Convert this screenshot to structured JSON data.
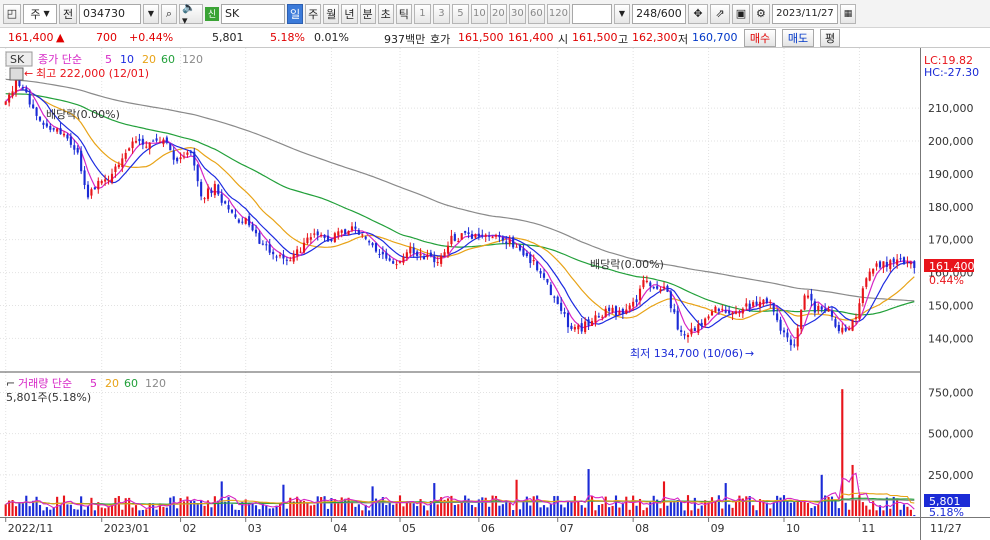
{
  "toolbar": {
    "type_label": "주",
    "period_label": "전",
    "code": "034730",
    "sec_badge": "신",
    "name": "SK",
    "tabs": [
      "일",
      "주",
      "월",
      "년",
      "분",
      "초",
      "틱"
    ],
    "active_tab": "일",
    "intervals": [
      "1",
      "3",
      "5",
      "10",
      "20",
      "30",
      "60",
      "120"
    ],
    "count": "248/600",
    "date": "2023/11/27"
  },
  "quote": {
    "price": "161,400",
    "change": "700",
    "change_pct": "+0.44%",
    "volume": "5,801",
    "vol_ratio": "5.18%",
    "turnover_pct": "0.01%",
    "amount": "937백만",
    "bid_label": "호가",
    "ask": "161,500",
    "bid": "161,400",
    "open_label": "시",
    "open": "161,500",
    "high_label": "고",
    "high": "162,300",
    "low_label": "저",
    "low": "160,700",
    "buy_btn": "매수",
    "sell_btn": "매도",
    "eval_btn": "평"
  },
  "price_legend": {
    "name": "SK",
    "label": "종가 단순",
    "periods": [
      "5",
      "10",
      "20",
      "60",
      "120"
    ]
  },
  "volume_legend": {
    "label": "거래량 단순",
    "periods": [
      "5",
      "20",
      "60",
      "120"
    ],
    "current": "5,801주(5.18%)"
  },
  "price_annotations": {
    "high": "최고 222,000 (12/01)",
    "low": "최저 134,700 (10/06)",
    "dividend1": "배당락(0.00%)",
    "dividend2": "배당락(0.00%)",
    "lc": "LC:19.82",
    "hc": "HC:-27.30",
    "last_price": "161,400",
    "last_pct": "0.44%",
    "last_vol": "5,801",
    "last_vol_pct": "5.18%"
  },
  "colors": {
    "up": "#e8141b",
    "down": "#1b2bd6",
    "ma5": "#d626c6",
    "ma10": "#1d2be0",
    "ma20": "#e8a317",
    "ma60": "#22a03a",
    "ma120": "#8a8a8a"
  },
  "chart_data": [
    {
      "type": "candlestick",
      "title": "SK (034730) 일봉",
      "x_labels": [
        "2022/11",
        "2023/01",
        "02",
        "03",
        "04",
        "05",
        "06",
        "07",
        "08",
        "09",
        "10",
        "11"
      ],
      "x_label_index": [
        0,
        28,
        51,
        70,
        95,
        115,
        138,
        161,
        183,
        205,
        227,
        249
      ],
      "last_date_label": "11/27",
      "y_ticks": [
        140000,
        150000,
        160000,
        170000,
        180000,
        190000,
        200000,
        210000
      ],
      "ylim": [
        131000,
        224000
      ],
      "close_anchors": [
        [
          0,
          212000
        ],
        [
          3,
          218000
        ],
        [
          6,
          214000
        ],
        [
          10,
          205000
        ],
        [
          14,
          204000
        ],
        [
          18,
          202000
        ],
        [
          21,
          196000
        ],
        [
          24,
          183000
        ],
        [
          27,
          187000
        ],
        [
          31,
          190000
        ],
        [
          35,
          196000
        ],
        [
          38,
          201000
        ],
        [
          42,
          199000
        ],
        [
          46,
          200000
        ],
        [
          50,
          194000
        ],
        [
          54,
          197000
        ],
        [
          57,
          183000
        ],
        [
          61,
          186000
        ],
        [
          64,
          180000
        ],
        [
          67,
          176000
        ],
        [
          70,
          177000
        ],
        [
          74,
          170000
        ],
        [
          78,
          165000
        ],
        [
          82,
          163000
        ],
        [
          86,
          167000
        ],
        [
          90,
          173000
        ],
        [
          94,
          170000
        ],
        [
          98,
          172000
        ],
        [
          102,
          174000
        ],
        [
          106,
          169000
        ],
        [
          110,
          165000
        ],
        [
          114,
          163000
        ],
        [
          118,
          167000
        ],
        [
          122,
          165000
        ],
        [
          126,
          163000
        ],
        [
          130,
          170000
        ],
        [
          134,
          171000
        ],
        [
          138,
          172000
        ],
        [
          142,
          171000
        ],
        [
          146,
          170000
        ],
        [
          150,
          167000
        ],
        [
          154,
          163000
        ],
        [
          158,
          156000
        ],
        [
          162,
          149000
        ],
        [
          165,
          142000
        ],
        [
          168,
          143000
        ],
        [
          172,
          147000
        ],
        [
          176,
          148000
        ],
        [
          180,
          148000
        ],
        [
          184,
          152000
        ],
        [
          186,
          158000
        ],
        [
          189,
          156000
        ],
        [
          193,
          154000
        ],
        [
          196,
          143000
        ],
        [
          199,
          141000
        ],
        [
          203,
          145000
        ],
        [
          207,
          149000
        ],
        [
          211,
          148000
        ],
        [
          215,
          149000
        ],
        [
          219,
          151000
        ],
        [
          223,
          150000
        ],
        [
          227,
          141000
        ],
        [
          230,
          138000
        ],
        [
          232,
          150000
        ],
        [
          234,
          154000
        ],
        [
          236,
          149000
        ],
        [
          240,
          148000
        ],
        [
          243,
          142000
        ],
        [
          246,
          143000
        ],
        [
          248,
          146000
        ],
        [
          251,
          158000
        ],
        [
          254,
          163000
        ],
        [
          257,
          162000
        ],
        [
          260,
          164000
        ],
        [
          263,
          163000
        ],
        [
          265,
          161400
        ]
      ],
      "annotations": [
        "최고 222,000 (12/01)",
        "최저 134,700 (10/06)",
        "배당락(0.00%)",
        "배당락(0.00%)"
      ],
      "moving_averages": [
        "5",
        "10",
        "20",
        "60",
        "120"
      ]
    },
    {
      "type": "bar",
      "title": "거래량",
      "y_ticks": [
        250000,
        500000,
        750000
      ],
      "ylim": [
        0,
        850000
      ],
      "last_volume": 5801,
      "spikes": [
        [
          63,
          210000
        ],
        [
          81,
          190000
        ],
        [
          107,
          180000
        ],
        [
          125,
          200000
        ],
        [
          149,
          220000
        ],
        [
          170,
          285000
        ],
        [
          192,
          210000
        ],
        [
          210,
          200000
        ],
        [
          238,
          250000
        ],
        [
          244,
          770000
        ],
        [
          247,
          310000
        ]
      ],
      "base_volume": 85000
    }
  ]
}
